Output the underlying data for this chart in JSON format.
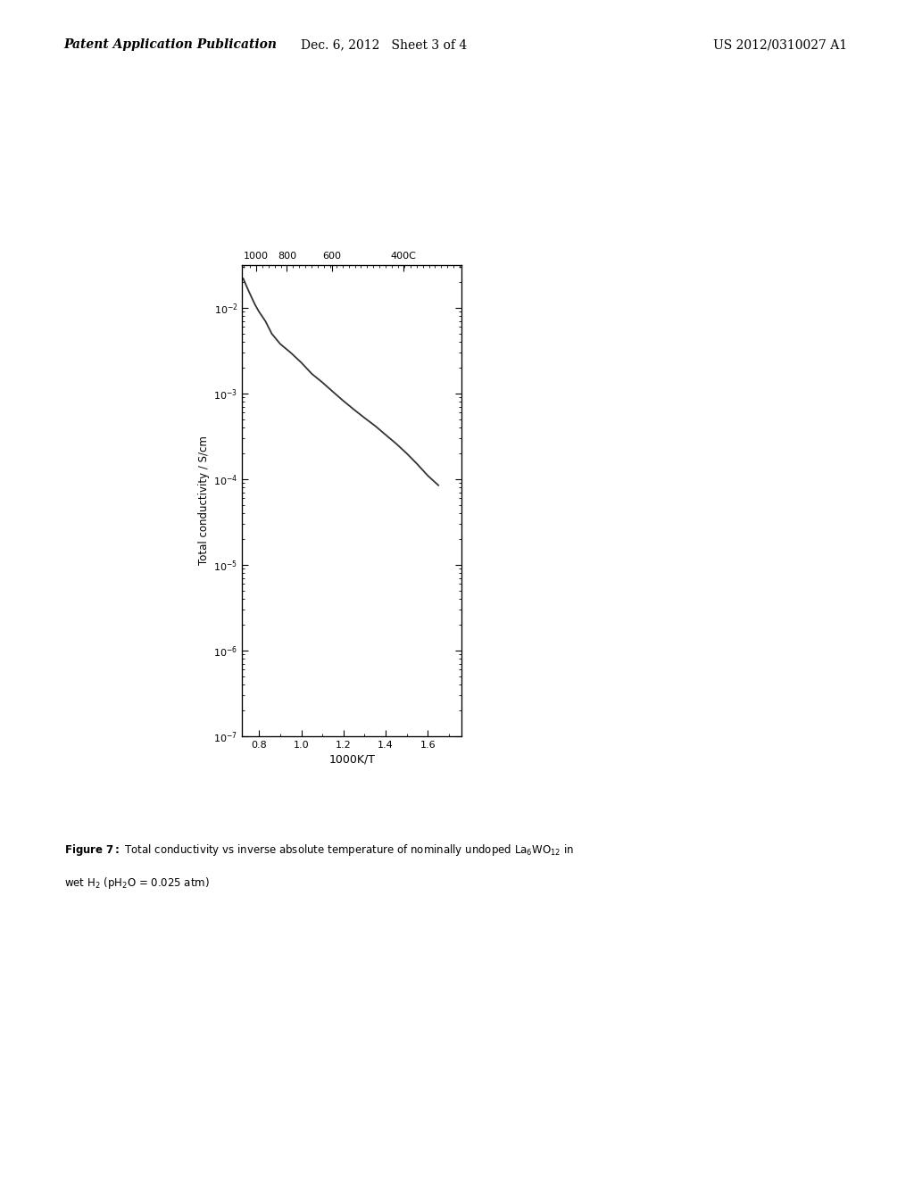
{
  "header_left": "Patent Application Publication",
  "header_mid": "Dec. 6, 2012   Sheet 3 of 4",
  "header_right": "US 2012/0310027 A1",
  "xlabel": "1000K/T",
  "ylabel": "Total conductivity / S/cm",
  "xlim": [
    0.72,
    1.76
  ],
  "curve_x": [
    0.725,
    0.74,
    0.76,
    0.78,
    0.8,
    0.83,
    0.86,
    0.9,
    0.95,
    1.0,
    1.05,
    1.1,
    1.15,
    1.2,
    1.25,
    1.3,
    1.35,
    1.4,
    1.45,
    1.5,
    1.55,
    1.6,
    1.65
  ],
  "curve_y": [
    0.022,
    0.018,
    0.014,
    0.011,
    0.009,
    0.007,
    0.005,
    0.0038,
    0.003,
    0.0023,
    0.0017,
    0.00135,
    0.00105,
    0.00082,
    0.00065,
    0.00052,
    0.00042,
    0.00033,
    0.00026,
    0.0002,
    0.00015,
    0.00011,
    8.5e-05
  ],
  "background_color": "#ffffff",
  "line_color": "#333333",
  "line_width": 1.3,
  "temp_labels": [
    "1000",
    "800",
    "600",
    "400C"
  ],
  "temp_celsius": [
    1000,
    800,
    600,
    400
  ],
  "ytick_powers": [
    -7,
    -6,
    -5,
    -4,
    -3,
    -2
  ],
  "xticks_bottom": [
    0.8,
    1.0,
    1.2,
    1.4,
    1.6
  ],
  "caption_line1": "Figure 7: Total conductivity vs inverse absolute temperature of nominally undoped La$_6$WO$_{12}$ in",
  "caption_line2": "wet H$_2$ (pH$_2$O = 0.025 atm)"
}
